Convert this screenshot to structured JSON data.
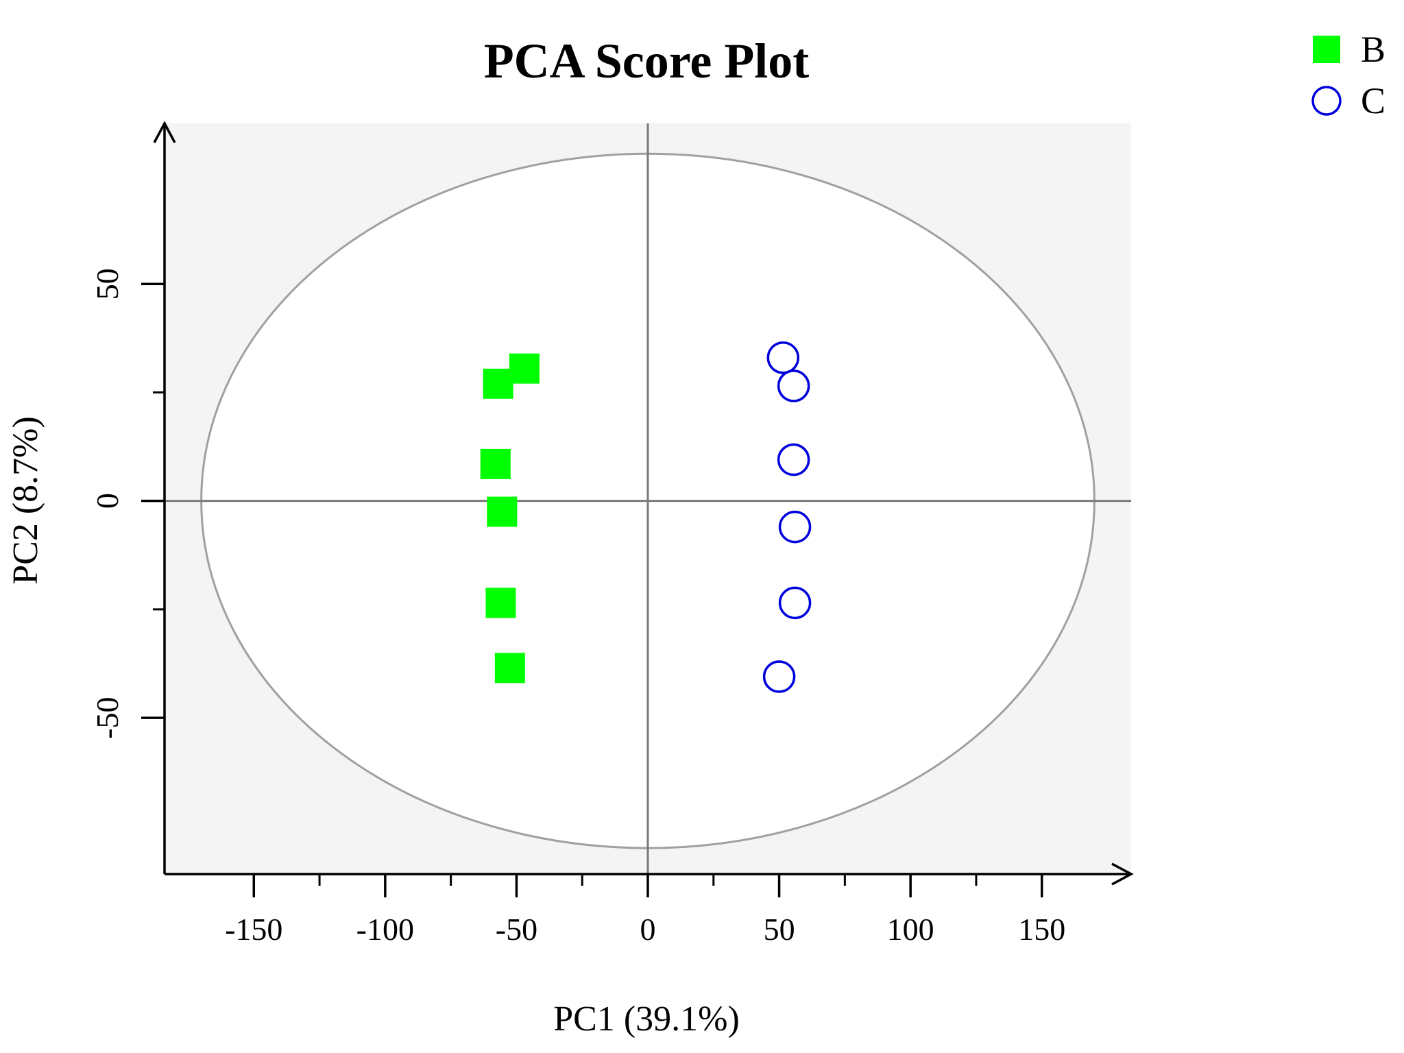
{
  "chart_data": {
    "type": "scatter",
    "title": "PCA Score Plot",
    "xlabel": "PC1 (39.1%)",
    "ylabel": "PC2 (8.7%)",
    "xlim": [
      -184,
      184
    ],
    "ylim": [
      -86,
      87
    ],
    "x_ticks": [
      {
        "value": -150,
        "label": "-150"
      },
      {
        "value": -100,
        "label": "-100"
      },
      {
        "value": -50,
        "label": "-50"
      },
      {
        "value": 0,
        "label": "0"
      },
      {
        "value": 50,
        "label": "50"
      },
      {
        "value": 100,
        "label": "100"
      },
      {
        "value": 150,
        "label": "150"
      }
    ],
    "x_minor_ticks": [
      -125,
      -75,
      -25,
      25,
      75,
      125
    ],
    "y_ticks": [
      {
        "value": -50,
        "label": "-50"
      },
      {
        "value": 0,
        "label": "0"
      },
      {
        "value": 50,
        "label": "50"
      }
    ],
    "y_minor_ticks": [
      -25,
      25
    ],
    "ellipse": {
      "cx": 0,
      "cy": 0,
      "rx": 170,
      "ry": 80
    },
    "grid": false,
    "reference_lines": {
      "x": 0,
      "y": 0
    },
    "background_color": "#f4f4f4",
    "ellipse_fill": "#ffffff",
    "ellipse_stroke": "#a0a0a0",
    "legend_position": "top-right",
    "series": [
      {
        "name": "B",
        "marker": "filled-square",
        "color": "#00ff00",
        "points": [
          {
            "x": -47,
            "y": 30.5
          },
          {
            "x": -57,
            "y": 27
          },
          {
            "x": -58,
            "y": 8.5
          },
          {
            "x": -55.5,
            "y": -2.5
          },
          {
            "x": -56,
            "y": -23.5
          },
          {
            "x": -52.5,
            "y": -38.5
          }
        ]
      },
      {
        "name": "C",
        "marker": "open-circle",
        "color": "#0000dd",
        "points": [
          {
            "x": 51.5,
            "y": 33
          },
          {
            "x": 55.5,
            "y": 26.5
          },
          {
            "x": 55.5,
            "y": 9.5
          },
          {
            "x": 56,
            "y": -6
          },
          {
            "x": 56,
            "y": -23.5
          },
          {
            "x": 50,
            "y": -40.5
          }
        ]
      }
    ]
  }
}
